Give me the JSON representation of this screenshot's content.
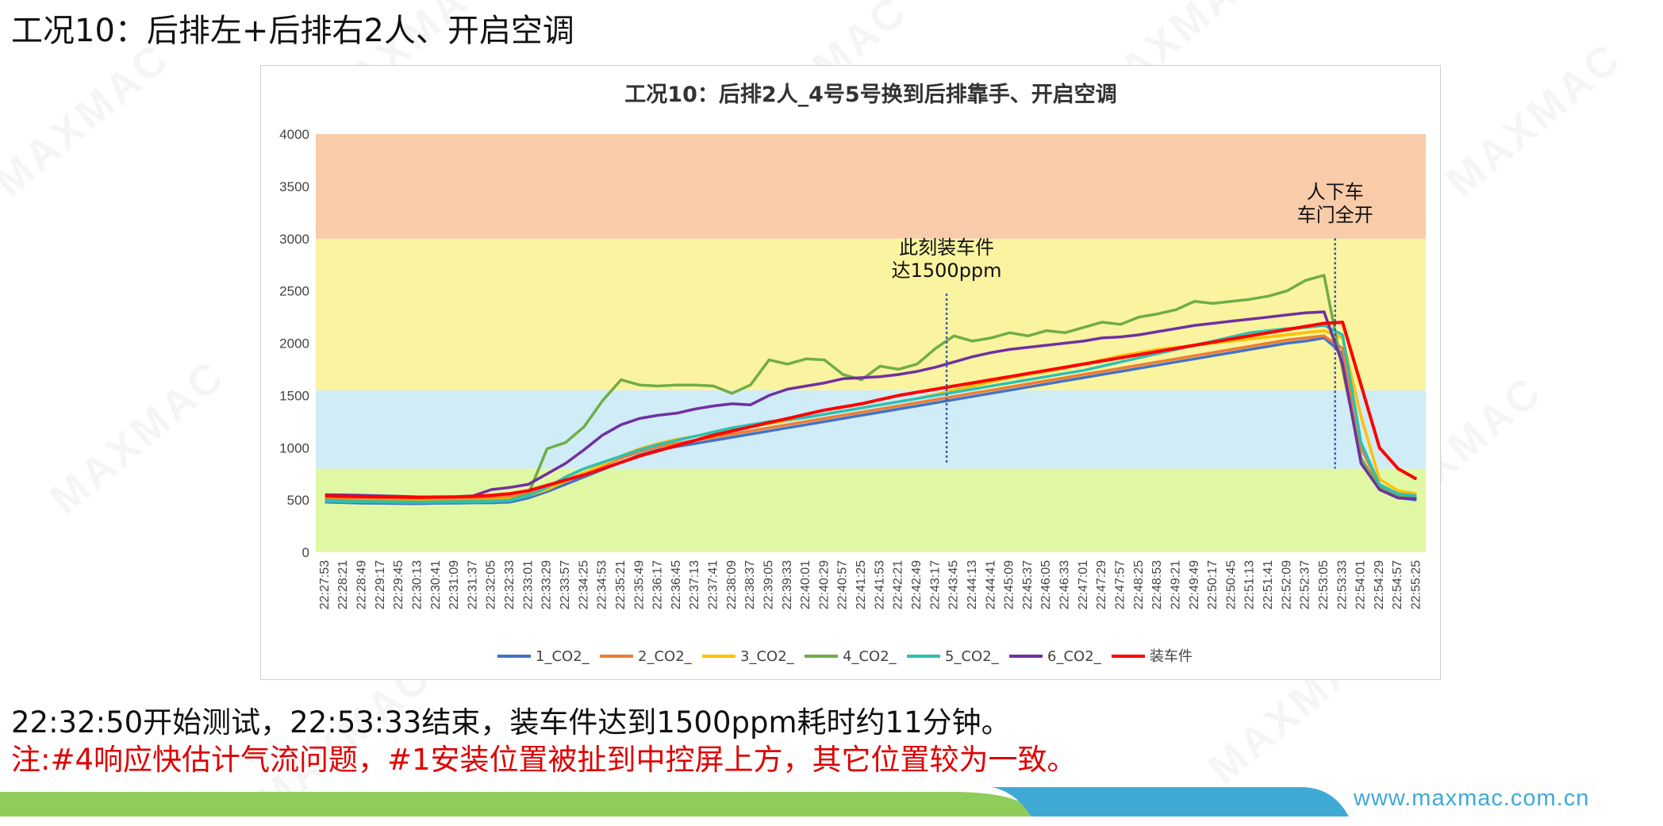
{
  "slide": {
    "title": "工况10：后排左+后排右2人、开启空调",
    "summary": "22:32:50开始测试，22:53:33结束，装车件达到1500ppm耗时约11分钟。",
    "note": "注:#4响应快估计气流问题，#1安装位置被扯到中控屏上方，其它位置较为一致。",
    "footer_url": "www.maxmac.com.cn",
    "watermark": "MAXMAC"
  },
  "chart_data": {
    "type": "line",
    "title": "工况10：后排2人_4号5号换到后排靠手、开启空调",
    "ylim": [
      0,
      4000
    ],
    "yticks": [
      0,
      500,
      1000,
      1500,
      2000,
      2500,
      3000,
      3500,
      4000
    ],
    "grid": false,
    "legend_position": "bottom",
    "bands": [
      {
        "from": 0,
        "to": 800,
        "color": "#e0f8a4"
      },
      {
        "from": 800,
        "to": 1550,
        "color": "#d0ecf6"
      },
      {
        "from": 1550,
        "to": 3000,
        "color": "#faf3a0"
      },
      {
        "from": 3000,
        "to": 4000,
        "color": "#f8cba9"
      }
    ],
    "x_categories": [
      "22:27:53",
      "22:28:21",
      "22:28:49",
      "22:29:17",
      "22:29:45",
      "22:30:13",
      "22:30:41",
      "22:31:09",
      "22:31:37",
      "22:32:05",
      "22:32:33",
      "22:33:01",
      "22:33:29",
      "22:33:57",
      "22:34:25",
      "22:34:53",
      "22:35:21",
      "22:35:49",
      "22:36:17",
      "22:36:45",
      "22:37:13",
      "22:37:41",
      "22:38:09",
      "22:38:37",
      "22:39:05",
      "22:39:33",
      "22:40:01",
      "22:40:29",
      "22:40:57",
      "22:41:25",
      "22:41:53",
      "22:42:21",
      "22:42:49",
      "22:43:17",
      "22:43:45",
      "22:44:13",
      "22:44:41",
      "22:45:09",
      "22:45:37",
      "22:46:05",
      "22:46:33",
      "22:47:01",
      "22:47:29",
      "22:47:57",
      "22:48:25",
      "22:48:53",
      "22:49:21",
      "22:49:49",
      "22:50:17",
      "22:50:45",
      "22:51:13",
      "22:51:41",
      "22:52:09",
      "22:52:37",
      "22:53:05",
      "22:53:33",
      "22:54:01",
      "22:54:29",
      "22:54:57",
      "22:55:25"
    ],
    "annotations": [
      {
        "text_lines": [
          "此刻装车件",
          "达1500ppm"
        ],
        "x_index": 33.6,
        "y_top": 2550
      },
      {
        "text_lines": [
          "人下车",
          "车门全开"
        ],
        "x_index": 54.6,
        "y_top": 3080
      }
    ],
    "series": [
      {
        "name": "1_CO2_",
        "color": "#4472c4",
        "values": [
          480,
          475,
          470,
          468,
          466,
          465,
          468,
          470,
          472,
          474,
          480,
          520,
          580,
          650,
          720,
          790,
          860,
          930,
          980,
          1010,
          1040,
          1070,
          1100,
          1130,
          1160,
          1190,
          1220,
          1250,
          1280,
          1310,
          1340,
          1370,
          1400,
          1430,
          1460,
          1490,
          1520,
          1550,
          1580,
          1610,
          1640,
          1670,
          1700,
          1730,
          1760,
          1790,
          1820,
          1850,
          1880,
          1910,
          1940,
          1970,
          2000,
          2020,
          2050,
          1900,
          900,
          600,
          520,
          500
        ]
      },
      {
        "name": "2_CO2_",
        "color": "#ed7d31",
        "values": [
          520,
          518,
          515,
          512,
          510,
          508,
          510,
          512,
          515,
          520,
          530,
          560,
          620,
          690,
          760,
          830,
          900,
          960,
          1010,
          1040,
          1070,
          1100,
          1130,
          1160,
          1190,
          1220,
          1250,
          1280,
          1310,
          1340,
          1370,
          1400,
          1430,
          1460,
          1490,
          1520,
          1550,
          1580,
          1610,
          1640,
          1670,
          1700,
          1730,
          1760,
          1790,
          1820,
          1850,
          1880,
          1910,
          1940,
          1970,
          2000,
          2030,
          2050,
          2070,
          1950,
          1000,
          640,
          560,
          540
        ]
      },
      {
        "name": "3_CO2_",
        "color": "#ffc000",
        "values": [
          500,
          498,
          495,
          492,
          490,
          488,
          490,
          492,
          495,
          500,
          510,
          540,
          600,
          680,
          760,
          840,
          920,
          990,
          1040,
          1080,
          1110,
          1140,
          1170,
          1200,
          1230,
          1260,
          1290,
          1320,
          1350,
          1380,
          1410,
          1440,
          1470,
          1510,
          1550,
          1590,
          1630,
          1670,
          1700,
          1730,
          1760,
          1800,
          1840,
          1880,
          1910,
          1940,
          1960,
          1980,
          2000,
          2020,
          2040,
          2060,
          2080,
          2100,
          2120,
          2050,
          1300,
          700,
          590,
          560
        ]
      },
      {
        "name": "4_CO2_",
        "color": "#70ad47",
        "values": [
          500,
          495,
          490,
          488,
          485,
          482,
          485,
          488,
          490,
          492,
          500,
          560,
          990,
          1050,
          1200,
          1450,
          1650,
          1600,
          1590,
          1600,
          1600,
          1590,
          1520,
          1600,
          1840,
          1800,
          1850,
          1840,
          1700,
          1650,
          1780,
          1750,
          1800,
          1950,
          2070,
          2020,
          2050,
          2100,
          2070,
          2120,
          2100,
          2150,
          2200,
          2180,
          2250,
          2280,
          2320,
          2400,
          2380,
          2400,
          2420,
          2450,
          2500,
          2600,
          2650,
          1750,
          900,
          620,
          540,
          520
        ]
      },
      {
        "name": "5_CO2_",
        "color": "#2ebfb4",
        "values": [
          490,
          485,
          482,
          480,
          478,
          476,
          478,
          480,
          482,
          485,
          495,
          540,
          620,
          720,
          800,
          860,
          920,
          980,
          1030,
          1070,
          1110,
          1150,
          1190,
          1220,
          1250,
          1270,
          1290,
          1320,
          1350,
          1380,
          1410,
          1440,
          1470,
          1500,
          1530,
          1560,
          1590,
          1620,
          1650,
          1680,
          1710,
          1740,
          1780,
          1820,
          1860,
          1900,
          1940,
          1980,
          2020,
          2060,
          2100,
          2120,
          2140,
          2150,
          2170,
          2080,
          1050,
          650,
          560,
          540
        ]
      },
      {
        "name": "6_CO2_",
        "color": "#7030a0",
        "values": [
          550,
          548,
          545,
          540,
          535,
          530,
          528,
          530,
          540,
          600,
          620,
          650,
          750,
          850,
          980,
          1120,
          1220,
          1280,
          1310,
          1330,
          1370,
          1400,
          1420,
          1410,
          1500,
          1560,
          1590,
          1620,
          1660,
          1670,
          1680,
          1700,
          1730,
          1770,
          1820,
          1870,
          1910,
          1940,
          1960,
          1980,
          2000,
          2020,
          2050,
          2060,
          2080,
          2110,
          2140,
          2170,
          2190,
          2210,
          2230,
          2250,
          2270,
          2290,
          2300,
          1800,
          850,
          600,
          520,
          510
        ]
      },
      {
        "name": "装车件",
        "color": "#ff0000",
        "values": [
          540,
          535,
          532,
          530,
          528,
          526,
          528,
          530,
          535,
          545,
          560,
          590,
          640,
          690,
          740,
          800,
          860,
          920,
          970,
          1020,
          1070,
          1120,
          1160,
          1200,
          1240,
          1280,
          1320,
          1360,
          1390,
          1420,
          1460,
          1500,
          1530,
          1560,
          1590,
          1620,
          1650,
          1680,
          1710,
          1740,
          1770,
          1800,
          1830,
          1860,
          1890,
          1920,
          1950,
          1980,
          2010,
          2040,
          2070,
          2100,
          2130,
          2160,
          2190,
          2200,
          1600,
          1000,
          800,
          700
        ]
      }
    ]
  }
}
